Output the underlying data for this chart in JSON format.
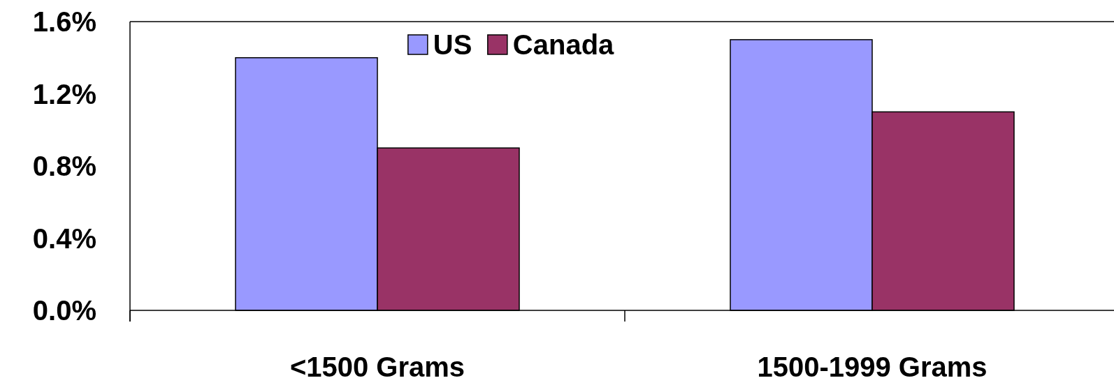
{
  "chart_data": {
    "type": "bar",
    "categories": [
      "<1500 Grams",
      "1500-1999 Grams"
    ],
    "series": [
      {
        "name": "US",
        "color": "#9999ff",
        "values": [
          1.4,
          1.5
        ]
      },
      {
        "name": "Canada",
        "color": "#993366",
        "values": [
          0.9,
          1.1
        ]
      }
    ],
    "ylim": [
      0,
      1.6
    ],
    "yticks": [
      {
        "value": 0,
        "label": "0.0%"
      },
      {
        "value": 0.4,
        "label": "0.4%"
      },
      {
        "value": 0.8,
        "label": "0.8%"
      },
      {
        "value": 1.2,
        "label": "1.2%"
      },
      {
        "value": 1.6,
        "label": "1.6%"
      }
    ],
    "grid": false,
    "legend": "top"
  }
}
